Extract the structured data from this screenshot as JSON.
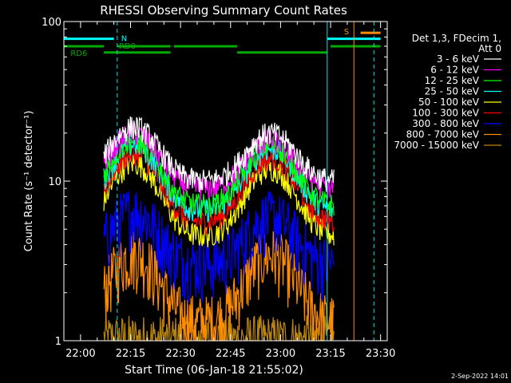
{
  "footer": {
    "date_stamp": "2-Sep-2022 14:01"
  },
  "legend": {
    "header_line1": "Det 1,3, FDecim 1,",
    "header_line2": "Att 0"
  },
  "colors": {
    "background": "#000000",
    "axes": "#ffffff",
    "N_dashed_line": "#00e5ee",
    "S_orange_line": "#ff8c00"
  },
  "chart_data": {
    "type": "line",
    "title": "RHESSI Observing Summary Count Rates",
    "xlabel": "Start Time (06-Jan-18 21:55:02)",
    "ylabel": "Count Rate (s⁻¹ detector⁻¹)",
    "y_scale": "log",
    "ylim": [
      1,
      100
    ],
    "y_ticks": [
      "1",
      "10",
      "100"
    ],
    "xlim": [
      "21:55",
      "23:32"
    ],
    "x_ticks": [
      {
        "t": "22:00",
        "label": "22:00"
      },
      {
        "t": "22:15",
        "label": "22:15"
      },
      {
        "t": "22:30",
        "label": "22:30"
      },
      {
        "t": "22:45",
        "label": "22:45"
      },
      {
        "t": "23:00",
        "label": "23:00"
      },
      {
        "t": "23:15",
        "label": "23:15"
      },
      {
        "t": "23:30",
        "label": "23:30"
      }
    ],
    "data_interval": [
      "22:07",
      "23:16"
    ],
    "series": [
      {
        "name": "3 - 6 keV",
        "color": "#ffffff",
        "peak1": 22,
        "trough": 10,
        "peak2": 20
      },
      {
        "name": "6 - 12 keV",
        "color": "#ff00ff",
        "peak1": 20,
        "trough": 9,
        "peak2": 18
      },
      {
        "name": "12 - 25 keV",
        "color": "#00ff00",
        "peak1": 18,
        "trough": 7,
        "peak2": 17
      },
      {
        "name": "25 - 50 keV",
        "color": "#00ffff",
        "peak1": 17,
        "trough": 6.5,
        "peak2": 16
      },
      {
        "name": "50 - 100 keV",
        "color": "#ffff00",
        "peak1": 13,
        "trough": 4.5,
        "peak2": 12
      },
      {
        "name": "100 - 300 keV",
        "color": "#ff0000",
        "peak1": 15,
        "trough": 5.5,
        "peak2": 14
      },
      {
        "name": "300 - 800 keV",
        "color": "#0000ff",
        "peak1": 6.5,
        "trough": 3,
        "peak2": 6
      },
      {
        "name": "800 - 7000 keV",
        "color": "#ff8c00",
        "peak1": 3.5,
        "trough": 1.3,
        "peak2": 3.5
      },
      {
        "name": "7000 - 15000 keV",
        "color": "#b8860b",
        "peak1": 1,
        "trough": 1,
        "peak2": 1
      }
    ],
    "flag_bars": [
      {
        "label": "N",
        "color": "#00ffff",
        "y": 78,
        "segments": [
          [
            "21:55",
            "22:10"
          ],
          [
            "23:14",
            "23:30"
          ]
        ]
      },
      {
        "label": "RD0",
        "color": "#00aa00",
        "y": 70,
        "segments": [
          [
            "21:55",
            "22:07"
          ],
          [
            "22:11",
            "22:27"
          ],
          [
            "22:28",
            "22:47"
          ],
          [
            "23:15",
            "23:30"
          ]
        ]
      },
      {
        "label": "RD6",
        "color": "#00aa00",
        "y": 64,
        "segments": [
          [
            "22:07",
            "22:27"
          ],
          [
            "22:47",
            "23:14"
          ]
        ]
      },
      {
        "label": "S",
        "color": "#ff8c00",
        "y": 85,
        "segments": [
          [
            "23:24",
            "23:30"
          ]
        ]
      }
    ],
    "vertical_lines": [
      {
        "t": "22:11",
        "color": "#00e5ee",
        "style": "dashed"
      },
      {
        "t": "23:14",
        "color": "#00e5ee",
        "style": "solid"
      },
      {
        "t": "23:28",
        "color": "#00e5ee",
        "style": "dashed"
      },
      {
        "t": "23:22",
        "color": "#ff8c00",
        "style": "solid"
      }
    ]
  }
}
